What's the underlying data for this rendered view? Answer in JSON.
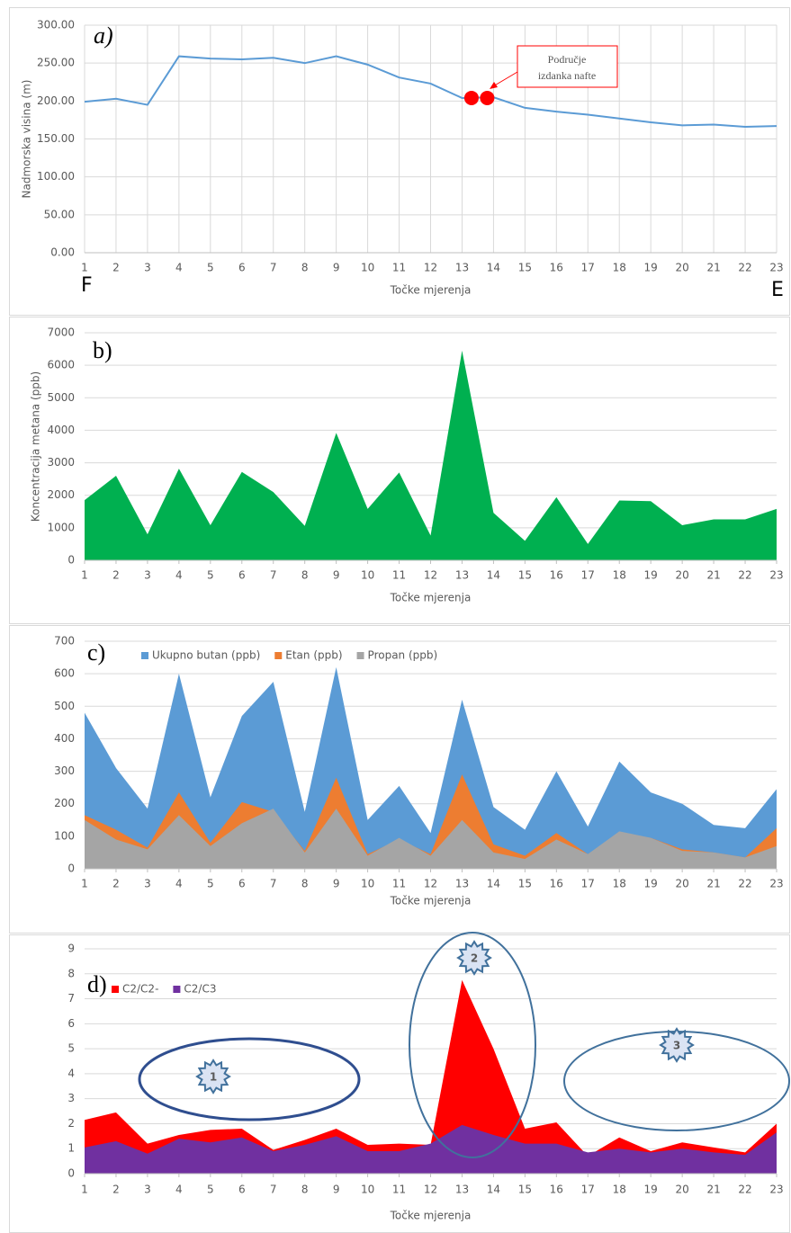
{
  "chart_data": [
    {
      "type": "line",
      "title": "a)",
      "y_label": "Nadmorska visina (m)",
      "x_label": "Točke mjerenja",
      "start_label": "F",
      "end_label": "E",
      "x": [
        1,
        2,
        3,
        4,
        5,
        6,
        7,
        8,
        9,
        10,
        11,
        12,
        13,
        14,
        15,
        16,
        17,
        18,
        19,
        20,
        21,
        22,
        23
      ],
      "series": [
        {
          "name": "Nadmorska visina",
          "color": "#5b9bd5",
          "values": [
            199,
            203,
            195,
            259,
            256,
            255,
            257,
            250,
            259,
            248,
            231,
            223,
            204,
            205,
            191,
            186,
            182,
            177,
            172,
            168,
            169,
            166,
            167
          ]
        }
      ],
      "xlim": [
        1,
        23
      ],
      "xticks": [
        1,
        2,
        3,
        4,
        5,
        6,
        7,
        8,
        9,
        10,
        11,
        12,
        13,
        14,
        15,
        16,
        17,
        18,
        19,
        20,
        21,
        22,
        23
      ],
      "ylim": [
        0,
        300
      ],
      "yticks": [
        {
          "value": 0,
          "label": "0.00"
        },
        {
          "value": 50,
          "label": "50.00"
        },
        {
          "value": 100,
          "label": "100.00"
        },
        {
          "value": 150,
          "label": "150.00"
        },
        {
          "value": 200,
          "label": "200.00"
        },
        {
          "value": 250,
          "label": "250.00"
        },
        {
          "value": 300,
          "label": "300.00"
        }
      ],
      "grid": {
        "x": true,
        "y": true
      },
      "annotation": {
        "lines": [
          "Područje",
          "izdanka nafte"
        ],
        "color": "#ff0000"
      },
      "points": {
        "x": [
          13.3,
          13.8
        ],
        "y": [
          204,
          204
        ],
        "color": "#ff0000"
      }
    },
    {
      "type": "area",
      "title": "b)",
      "y_label": "Koncentracija metana (ppb)",
      "x_label": "Točke mjerenja",
      "x": [
        1,
        2,
        3,
        4,
        5,
        6,
        7,
        8,
        9,
        10,
        11,
        12,
        13,
        14,
        15,
        16,
        17,
        18,
        19,
        20,
        21,
        22,
        23
      ],
      "series": [
        {
          "name": "Koncentracija metana",
          "color": "#00b050",
          "values": [
            1850,
            2600,
            800,
            2820,
            1080,
            2720,
            2100,
            1060,
            3920,
            1580,
            2700,
            760,
            6450,
            1460,
            600,
            1940,
            500,
            1840,
            1820,
            1080,
            1260,
            1260,
            1580
          ]
        }
      ],
      "xlim": [
        1,
        23
      ],
      "xticks": [
        1,
        2,
        3,
        4,
        5,
        6,
        7,
        8,
        9,
        10,
        11,
        12,
        13,
        14,
        15,
        16,
        17,
        18,
        19,
        20,
        21,
        22,
        23
      ],
      "ylim": [
        0,
        7000
      ],
      "yticks": [
        0,
        1000,
        2000,
        3000,
        4000,
        5000,
        6000,
        7000
      ],
      "grid": {
        "x": false,
        "y": true
      }
    },
    {
      "type": "area",
      "title": "c)",
      "x_label": "Točke mjerenja",
      "x": [
        1,
        2,
        3,
        4,
        5,
        6,
        7,
        8,
        9,
        10,
        11,
        12,
        13,
        14,
        15,
        16,
        17,
        18,
        19,
        20,
        21,
        22,
        23
      ],
      "series": [
        {
          "name": "Ukupno butan (ppb)",
          "color": "#5b9bd5",
          "values": [
            480,
            310,
            185,
            600,
            220,
            470,
            575,
            175,
            620,
            150,
            255,
            110,
            520,
            190,
            120,
            300,
            130,
            330,
            235,
            200,
            135,
            125,
            245
          ]
        },
        {
          "name": "Etan (ppb)",
          "color": "#ed7d31",
          "values": [
            165,
            120,
            65,
            235,
            80,
            205,
            175,
            55,
            280,
            45,
            90,
            45,
            290,
            75,
            40,
            110,
            45,
            110,
            95,
            60,
            50,
            35,
            125
          ]
        },
        {
          "name": "Propan (ppb)",
          "color": "#a5a5a5",
          "values": [
            150,
            90,
            60,
            165,
            70,
            140,
            185,
            50,
            185,
            40,
            95,
            40,
            150,
            50,
            30,
            90,
            45,
            115,
            95,
            55,
            50,
            35,
            70
          ]
        }
      ],
      "xlim": [
        1,
        23
      ],
      "xticks": [
        1,
        2,
        3,
        4,
        5,
        6,
        7,
        8,
        9,
        10,
        11,
        12,
        13,
        14,
        15,
        16,
        17,
        18,
        19,
        20,
        21,
        22,
        23
      ],
      "ylim": [
        0,
        700
      ],
      "yticks": [
        0,
        100,
        200,
        300,
        400,
        500,
        600,
        700
      ],
      "grid": {
        "x": false,
        "y": true
      },
      "legend": "top-left"
    },
    {
      "type": "area",
      "title": "d)",
      "x_label": "Točke mjerenja",
      "x": [
        1,
        2,
        3,
        4,
        5,
        6,
        7,
        8,
        9,
        10,
        11,
        12,
        13,
        14,
        15,
        16,
        17,
        18,
        19,
        20,
        21,
        22,
        23
      ],
      "series": [
        {
          "name": "C2/C2-",
          "color": "#ff0000",
          "values": [
            2.15,
            2.45,
            1.2,
            1.55,
            1.75,
            1.8,
            0.95,
            1.35,
            1.8,
            1.15,
            1.2,
            1.15,
            7.75,
            5.0,
            1.8,
            2.05,
            0.7,
            1.45,
            0.9,
            1.25,
            1.05,
            0.85,
            2.0
          ]
        },
        {
          "name": "C2/C3",
          "color": "#7030a0",
          "values": [
            1.05,
            1.3,
            0.8,
            1.4,
            1.25,
            1.45,
            0.9,
            1.15,
            1.5,
            0.9,
            0.9,
            1.2,
            1.95,
            1.55,
            1.2,
            1.2,
            0.85,
            1.0,
            0.85,
            1.0,
            0.85,
            0.75,
            1.65
          ]
        }
      ],
      "xlim": [
        1,
        23
      ],
      "xticks": [
        1,
        2,
        3,
        4,
        5,
        6,
        7,
        8,
        9,
        10,
        11,
        12,
        13,
        14,
        15,
        16,
        17,
        18,
        19,
        20,
        21,
        22,
        23
      ],
      "ylim": [
        0,
        9
      ],
      "yticks": [
        0,
        1,
        2,
        3,
        4,
        5,
        6,
        7,
        8,
        9
      ],
      "grid": {
        "x": false,
        "y": true
      },
      "legend": "top-left",
      "annotations": [
        {
          "label": "1"
        },
        {
          "label": "2"
        },
        {
          "label": "3"
        }
      ]
    }
  ]
}
